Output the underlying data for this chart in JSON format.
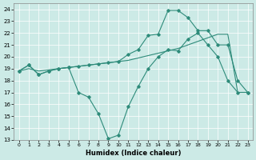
{
  "xlabel": "Humidex (Indice chaleur)",
  "bg_color": "#cceae6",
  "line_color": "#2e8b7a",
  "grid_color": "#ffffff",
  "xlim": [
    -0.5,
    23.5
  ],
  "ylim": [
    13,
    24.5
  ],
  "yticks": [
    13,
    14,
    15,
    16,
    17,
    18,
    19,
    20,
    21,
    22,
    23,
    24
  ],
  "xticks": [
    0,
    1,
    2,
    3,
    4,
    5,
    6,
    7,
    8,
    9,
    10,
    11,
    12,
    13,
    14,
    15,
    16,
    17,
    18,
    19,
    20,
    21,
    22,
    23
  ],
  "line1_x": [
    0,
    1,
    2,
    3,
    4,
    5,
    6,
    7,
    8,
    9,
    10,
    11,
    12,
    13,
    14,
    15,
    16,
    17,
    18,
    19,
    20,
    21,
    22,
    23
  ],
  "line1_y": [
    18.8,
    19.3,
    18.5,
    18.8,
    19.0,
    19.1,
    17.0,
    16.6,
    15.2,
    13.1,
    13.4,
    15.8,
    17.5,
    19.0,
    20.0,
    20.6,
    20.5,
    21.5,
    22.0,
    21.0,
    20.0,
    18.0,
    17.0,
    17.0
  ],
  "line2_x": [
    0,
    1,
    2,
    3,
    4,
    5,
    6,
    7,
    8,
    9,
    10,
    11,
    12,
    13,
    14,
    15,
    16,
    17,
    18,
    19,
    20,
    21,
    22,
    23
  ],
  "line2_y": [
    18.8,
    19.0,
    18.8,
    18.9,
    19.0,
    19.1,
    19.2,
    19.3,
    19.4,
    19.5,
    19.6,
    19.7,
    19.9,
    20.1,
    20.3,
    20.5,
    20.7,
    21.0,
    21.3,
    21.6,
    21.9,
    21.9,
    17.0,
    17.0
  ],
  "line3_x": [
    0,
    1,
    2,
    3,
    4,
    5,
    6,
    7,
    8,
    9,
    10,
    11,
    12,
    13,
    14,
    15,
    16,
    17,
    18,
    19,
    20,
    21,
    22,
    23
  ],
  "line3_y": [
    18.8,
    19.3,
    18.5,
    18.8,
    19.0,
    19.1,
    19.2,
    19.3,
    19.4,
    19.5,
    19.6,
    20.2,
    20.6,
    21.8,
    21.9,
    23.9,
    23.9,
    23.3,
    22.2,
    22.2,
    21.0,
    21.0,
    18.0,
    17.0
  ]
}
